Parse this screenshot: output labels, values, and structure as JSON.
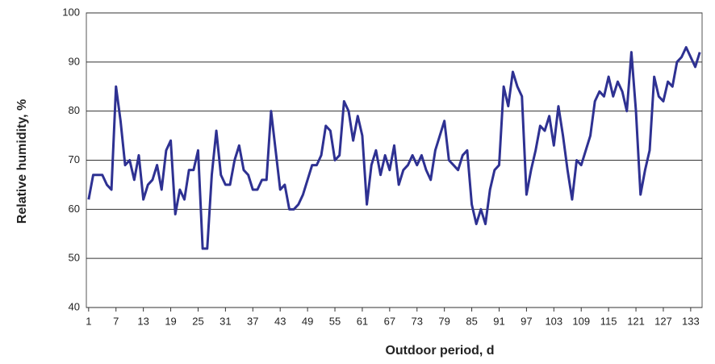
{
  "chart_data": {
    "type": "line",
    "xlabel": "Outdoor period, d",
    "ylabel": "Relative humidity, %",
    "x": [
      1,
      2,
      3,
      4,
      5,
      6,
      7,
      8,
      9,
      10,
      11,
      12,
      13,
      14,
      15,
      16,
      17,
      18,
      19,
      20,
      21,
      22,
      23,
      24,
      25,
      26,
      27,
      28,
      29,
      30,
      31,
      32,
      33,
      34,
      35,
      36,
      37,
      38,
      39,
      40,
      41,
      42,
      43,
      44,
      45,
      46,
      47,
      48,
      49,
      50,
      51,
      52,
      53,
      54,
      55,
      56,
      57,
      58,
      59,
      60,
      61,
      62,
      63,
      64,
      65,
      66,
      67,
      68,
      69,
      70,
      71,
      72,
      73,
      74,
      75,
      76,
      77,
      78,
      79,
      80,
      81,
      82,
      83,
      84,
      85,
      86,
      87,
      88,
      89,
      90,
      91,
      92,
      93,
      94,
      95,
      96,
      97,
      98,
      99,
      100,
      101,
      102,
      103,
      104,
      105,
      106,
      107,
      108,
      109,
      110,
      111,
      112,
      113,
      114,
      115,
      116,
      117,
      118,
      119,
      120,
      121,
      122,
      123,
      124,
      125,
      126,
      127,
      128,
      129,
      130,
      131,
      132,
      133,
      134,
      135
    ],
    "series": [
      {
        "color": "#2e3192",
        "values": [
          62,
          67,
          67,
          67,
          65,
          64,
          85,
          78,
          69,
          70,
          66,
          71,
          62,
          65,
          66,
          69,
          64,
          72,
          74,
          59,
          64,
          62,
          68,
          68,
          72,
          52,
          52,
          67,
          76,
          67,
          65,
          65,
          70,
          73,
          68,
          67,
          64,
          64,
          66,
          66,
          80,
          72,
          64,
          65,
          60,
          60,
          61,
          63,
          66,
          69,
          69,
          71,
          77,
          76,
          70,
          71,
          82,
          80,
          74,
          79,
          75,
          61,
          69,
          72,
          67,
          71,
          68,
          73,
          65,
          68,
          69,
          71,
          69,
          71,
          68,
          66,
          72,
          75,
          78,
          70,
          69,
          68,
          71,
          72,
          61,
          57,
          60,
          57,
          64,
          68,
          69,
          85,
          81,
          88,
          85,
          83,
          63,
          68,
          72,
          77,
          76,
          79,
          73,
          81,
          75,
          68,
          62,
          70,
          69,
          72,
          75,
          82,
          84,
          83,
          87,
          83,
          86,
          84,
          80,
          92,
          80,
          63,
          68,
          72,
          87,
          83,
          82,
          86,
          85,
          90,
          91,
          93,
          91,
          89,
          92
        ]
      }
    ],
    "xlim": [
      0.5,
      135.5
    ],
    "xticks": [
      1,
      7,
      13,
      19,
      25,
      31,
      37,
      43,
      49,
      55,
      61,
      67,
      73,
      79,
      85,
      91,
      97,
      103,
      109,
      115,
      121,
      127,
      133
    ],
    "ylim": [
      40,
      100
    ],
    "yticks": [
      40,
      50,
      60,
      70,
      80,
      90,
      100
    ],
    "grid": true
  }
}
